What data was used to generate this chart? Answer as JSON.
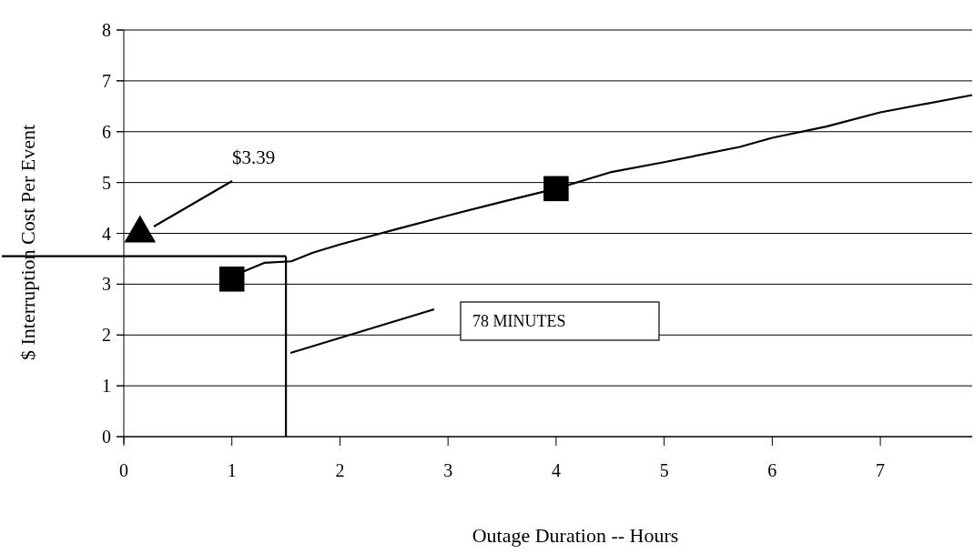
{
  "chart_data": {
    "type": "line",
    "xlabel": "Outage Duration -- Hours",
    "ylabel": "$ Interruption Cost Per Event",
    "xlim": [
      0,
      7.85
    ],
    "xticks": [
      0,
      1,
      2,
      3,
      4,
      5,
      6,
      7
    ],
    "ylim": [
      0,
      8
    ],
    "yticks": [
      0,
      1,
      2,
      3,
      4,
      5,
      6,
      7,
      8
    ],
    "grid": "y",
    "series": [
      {
        "color": "#000000",
        "marker": "none",
        "x": [
          1.05,
          1.3,
          1.55,
          1.75,
          2,
          2.5,
          3,
          3.5,
          4,
          4.5,
          5,
          5.7,
          6,
          6.5,
          7,
          7.85
        ],
        "values": [
          3.2,
          3.42,
          3.45,
          3.62,
          3.78,
          4.07,
          4.35,
          4.62,
          4.88,
          5.2,
          5.4,
          5.7,
          5.88,
          6.1,
          6.38,
          6.72
        ]
      },
      {
        "type": "scatter",
        "color": "#000000",
        "marker": "square",
        "x": [
          1,
          4
        ],
        "values": [
          3.1,
          4.88
        ]
      },
      {
        "type": "scatter",
        "color": "#000000",
        "marker": "triangle",
        "x": [
          0.15
        ],
        "values": [
          4.0
        ]
      }
    ],
    "ref_lines": [
      {
        "axis": "y",
        "value": 3.55
      },
      {
        "axis": "x",
        "value": 1.5
      }
    ],
    "annotations": [
      "$3.39",
      "78 MINUTES"
    ]
  }
}
